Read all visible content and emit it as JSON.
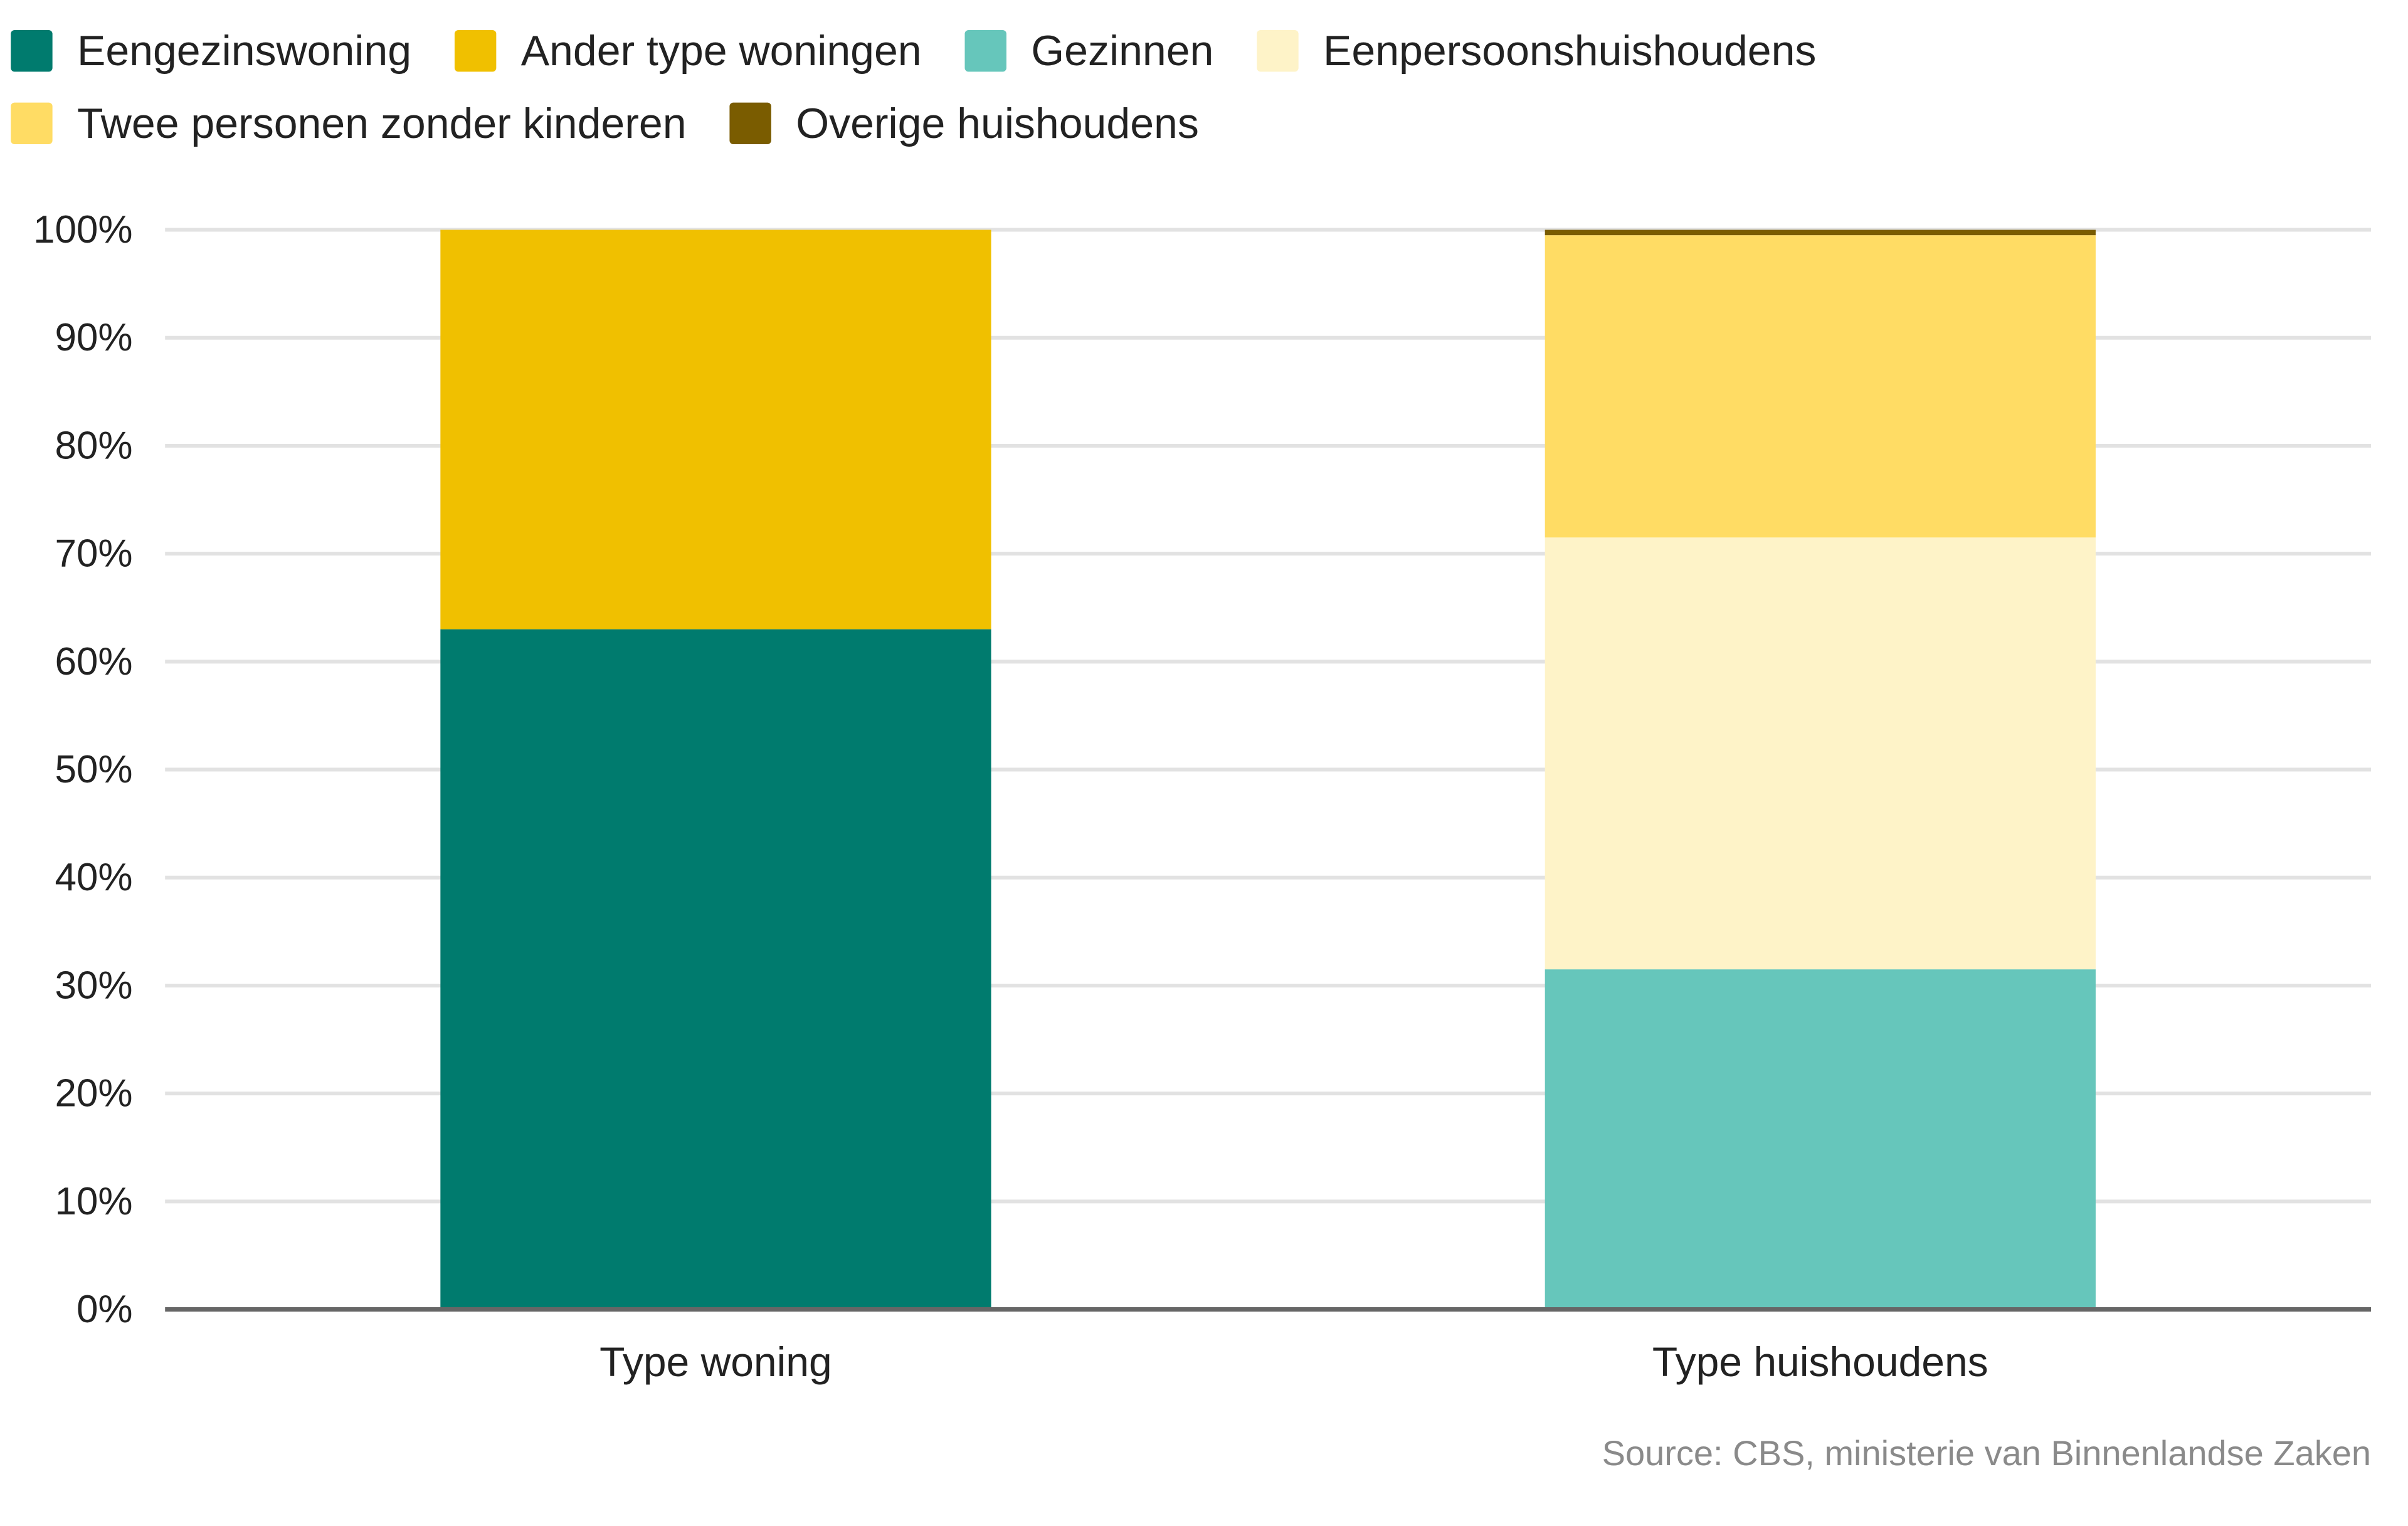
{
  "chart_data": {
    "type": "bar",
    "stacked": true,
    "categories": [
      "Type woning",
      "Type huishoudens"
    ],
    "series": [
      {
        "name": "Eengezinswoning",
        "color": "#007B6E",
        "values": [
          63,
          0
        ]
      },
      {
        "name": "Ander type woningen",
        "color": "#F0C000",
        "values": [
          37,
          0
        ]
      },
      {
        "name": "Gezinnen",
        "color": "#66C6BB",
        "values": [
          0,
          31.5
        ]
      },
      {
        "name": "Eenpersoonshuishoudens",
        "color": "#FEF3C8",
        "values": [
          0,
          40
        ]
      },
      {
        "name": "Twee personen zonder kinderen",
        "color": "#FFDC64",
        "values": [
          0,
          28
        ]
      },
      {
        "name": "Overige huishoudens",
        "color": "#7A5C00",
        "values": [
          0,
          0.5
        ]
      }
    ],
    "yticks": [
      "0%",
      "10%",
      "20%",
      "30%",
      "40%",
      "50%",
      "60%",
      "70%",
      "80%",
      "90%",
      "100%"
    ],
    "ylim": [
      0,
      100
    ],
    "grid": true,
    "legend_position": "top-left",
    "source": "Source:  CBS, ministerie van Binnenlandse Zaken"
  }
}
